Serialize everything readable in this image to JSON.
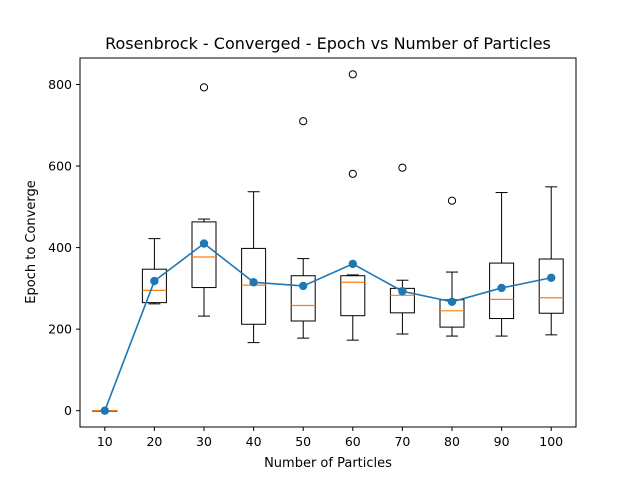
{
  "chart_data": {
    "type": "box",
    "title": "Rosenbrock - Converged - Epoch vs Number of Particles",
    "xlabel": "Number of Particles",
    "ylabel": "Epoch to Converge",
    "categories": [
      "10",
      "20",
      "30",
      "40",
      "50",
      "60",
      "70",
      "80",
      "90",
      "100"
    ],
    "yticks": [
      "0",
      "200",
      "400",
      "600",
      "800"
    ],
    "ylim": [
      -40,
      865
    ],
    "grid": false,
    "boxes": [
      {
        "x": 10,
        "whisker_low": 0,
        "q1": 0,
        "median": 0,
        "q3": 0,
        "whisker_high": 0,
        "outliers": []
      },
      {
        "x": 20,
        "whisker_low": 262,
        "q1": 265,
        "median": 295,
        "q3": 347,
        "whisker_high": 422,
        "outliers": []
      },
      {
        "x": 30,
        "whisker_low": 232,
        "q1": 302,
        "median": 377,
        "q3": 463,
        "whisker_high": 470,
        "outliers": [
          793
        ]
      },
      {
        "x": 40,
        "whisker_low": 167,
        "q1": 212,
        "median": 308,
        "q3": 398,
        "whisker_high": 537,
        "outliers": []
      },
      {
        "x": 50,
        "whisker_low": 178,
        "q1": 220,
        "median": 258,
        "q3": 331,
        "whisker_high": 373,
        "outliers": [
          710
        ]
      },
      {
        "x": 60,
        "whisker_low": 173,
        "q1": 233,
        "median": 315,
        "q3": 331,
        "whisker_high": 333,
        "outliers": [
          581,
          825
        ]
      },
      {
        "x": 70,
        "whisker_low": 188,
        "q1": 240,
        "median": 283,
        "q3": 300,
        "whisker_high": 320,
        "outliers": [
          596
        ]
      },
      {
        "x": 80,
        "whisker_low": 183,
        "q1": 205,
        "median": 245,
        "q3": 272,
        "whisker_high": 340,
        "outliers": [
          515
        ]
      },
      {
        "x": 90,
        "whisker_low": 183,
        "q1": 226,
        "median": 273,
        "q3": 362,
        "whisker_high": 535,
        "outliers": []
      },
      {
        "x": 100,
        "whisker_low": 186,
        "q1": 239,
        "median": 277,
        "q3": 372,
        "whisker_high": 549,
        "outliers": []
      }
    ],
    "mean_series": {
      "x": [
        10,
        20,
        30,
        40,
        50,
        60,
        70,
        80,
        90,
        100
      ],
      "values": [
        0,
        318,
        410,
        315,
        306,
        360,
        293,
        267,
        301,
        326
      ]
    },
    "colors": {
      "box": "#000000",
      "median": "#ff7f0e",
      "mean": "#1f77b4",
      "outlier": "#000000"
    }
  }
}
